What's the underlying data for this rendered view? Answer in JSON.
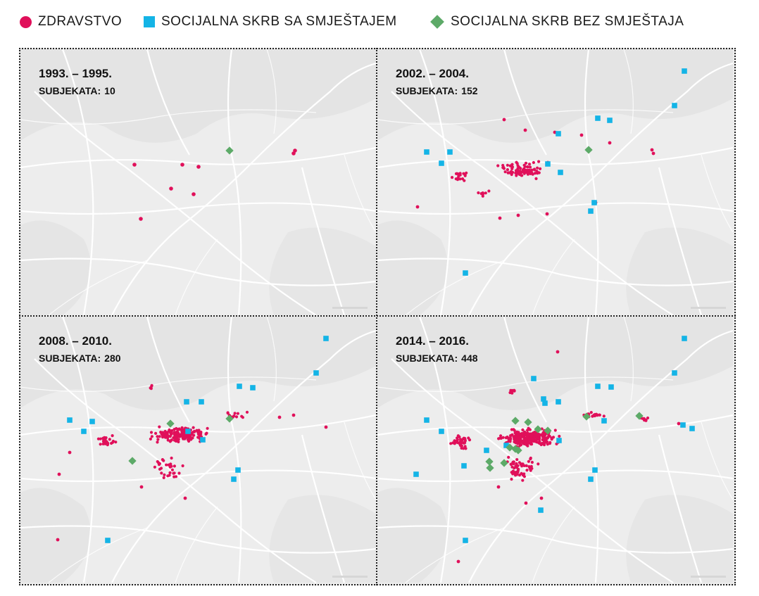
{
  "legend": {
    "items": [
      {
        "label": "ZDRAVSTVO",
        "color": "#e0105a",
        "shape": "circle"
      },
      {
        "label": "SOCIJALNA SKRB SA SMJEŠTAJEM",
        "color": "#14b4e6",
        "shape": "square"
      },
      {
        "label": "SOCIJALNA SKRB BEZ SMJEŠTAJA",
        "color": "#5daa68",
        "shape": "diamond"
      }
    ]
  },
  "panels": [
    {
      "period": "1993. – 1995.",
      "count_label": "SUBJEKATA:",
      "count": "10"
    },
    {
      "period": "2002. – 2004.",
      "count_label": "SUBJEKATA:",
      "count": "152"
    },
    {
      "period": "2008. – 2010.",
      "count_label": "SUBJEKATA:",
      "count": "280"
    },
    {
      "period": "2014. – 2016.",
      "count_label": "SUBJEKATA:",
      "count": "448"
    }
  ],
  "map_style": {
    "background": "#ededed",
    "roads": "#ffffff",
    "relief": "#e2e2e2",
    "health_color": "#e0105a",
    "care_with_accommodation_color": "#14b4e6",
    "care_without_accommodation_color": "#5daa68"
  }
}
